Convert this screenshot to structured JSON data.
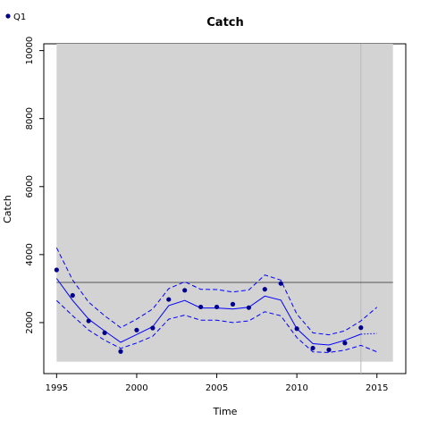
{
  "chart_data": {
    "type": "line",
    "title": "Catch",
    "xlabel": "Time",
    "ylabel": "Catch",
    "xlim": [
      1994.2,
      2016.8
    ],
    "ylim": [
      500,
      10200
    ],
    "xticks": [
      1995,
      2000,
      2005,
      2010,
      2015
    ],
    "yticks": [
      2000,
      4000,
      6000,
      8000,
      10000
    ],
    "grid": false,
    "legend": {
      "position": "top-left",
      "entries": [
        "Q1"
      ]
    },
    "shaded_region": {
      "x": [
        1995,
        2016
      ],
      "y": [
        850,
        10200
      ],
      "color": "#d3d3d3"
    },
    "reference_hline": {
      "y": 3180,
      "color": "#555555"
    },
    "reference_vline": {
      "x": 2014,
      "color": "#bbbbbb"
    },
    "colors": {
      "series": "#0000ff",
      "points": "#00008b"
    },
    "series": [
      {
        "name": "Q1",
        "role": "observed",
        "x": [
          1995,
          1996,
          1997,
          1998,
          1999,
          2000,
          2001,
          2002,
          2003,
          2004,
          2005,
          2006,
          2007,
          2008,
          2009,
          2010,
          2011,
          2012,
          2013,
          2014
        ],
        "values": [
          3550,
          2800,
          2050,
          1700,
          1150,
          1780,
          1840,
          2680,
          2950,
          2460,
          2460,
          2540,
          2440,
          2980,
          3150,
          1820,
          1250,
          1200,
          1400,
          1850
        ]
      },
      {
        "role": "fitted",
        "style": "solid",
        "x": [
          1995,
          1996,
          1997,
          1998,
          1999,
          2000,
          2001,
          2002,
          2003,
          2004,
          2005,
          2006,
          2007,
          2008,
          2009,
          2010,
          2011,
          2012,
          2013,
          2014
        ],
        "values": [
          3300,
          2650,
          2100,
          1750,
          1420,
          1650,
          1880,
          2500,
          2650,
          2430,
          2430,
          2400,
          2450,
          2780,
          2660,
          1820,
          1380,
          1340,
          1480,
          1660
        ]
      },
      {
        "role": "upper-interval",
        "style": "dashed",
        "x": [
          1995,
          1996,
          1997,
          1998,
          1999,
          2000,
          2001,
          2002,
          2003,
          2004,
          2005,
          2006,
          2007,
          2008,
          2009,
          2010,
          2011,
          2012,
          2013,
          2014,
          2015
        ],
        "values": [
          4200,
          3250,
          2600,
          2200,
          1850,
          2100,
          2400,
          3000,
          3200,
          2980,
          2970,
          2900,
          2960,
          3400,
          3250,
          2250,
          1700,
          1640,
          1760,
          2050,
          2450
        ]
      },
      {
        "role": "lower-interval",
        "style": "dashed",
        "x": [
          1995,
          1996,
          1997,
          1998,
          1999,
          2000,
          2001,
          2002,
          2003,
          2004,
          2005,
          2006,
          2007,
          2008,
          2009,
          2010,
          2011,
          2012,
          2013,
          2014,
          2015
        ],
        "values": [
          2650,
          2200,
          1780,
          1480,
          1240,
          1400,
          1600,
          2100,
          2220,
          2070,
          2070,
          2000,
          2050,
          2320,
          2200,
          1560,
          1140,
          1120,
          1190,
          1330,
          1140
        ]
      },
      {
        "role": "forecast",
        "style": "dotted",
        "x": [
          2014,
          2015
        ],
        "values": [
          1660,
          1680
        ]
      }
    ]
  }
}
